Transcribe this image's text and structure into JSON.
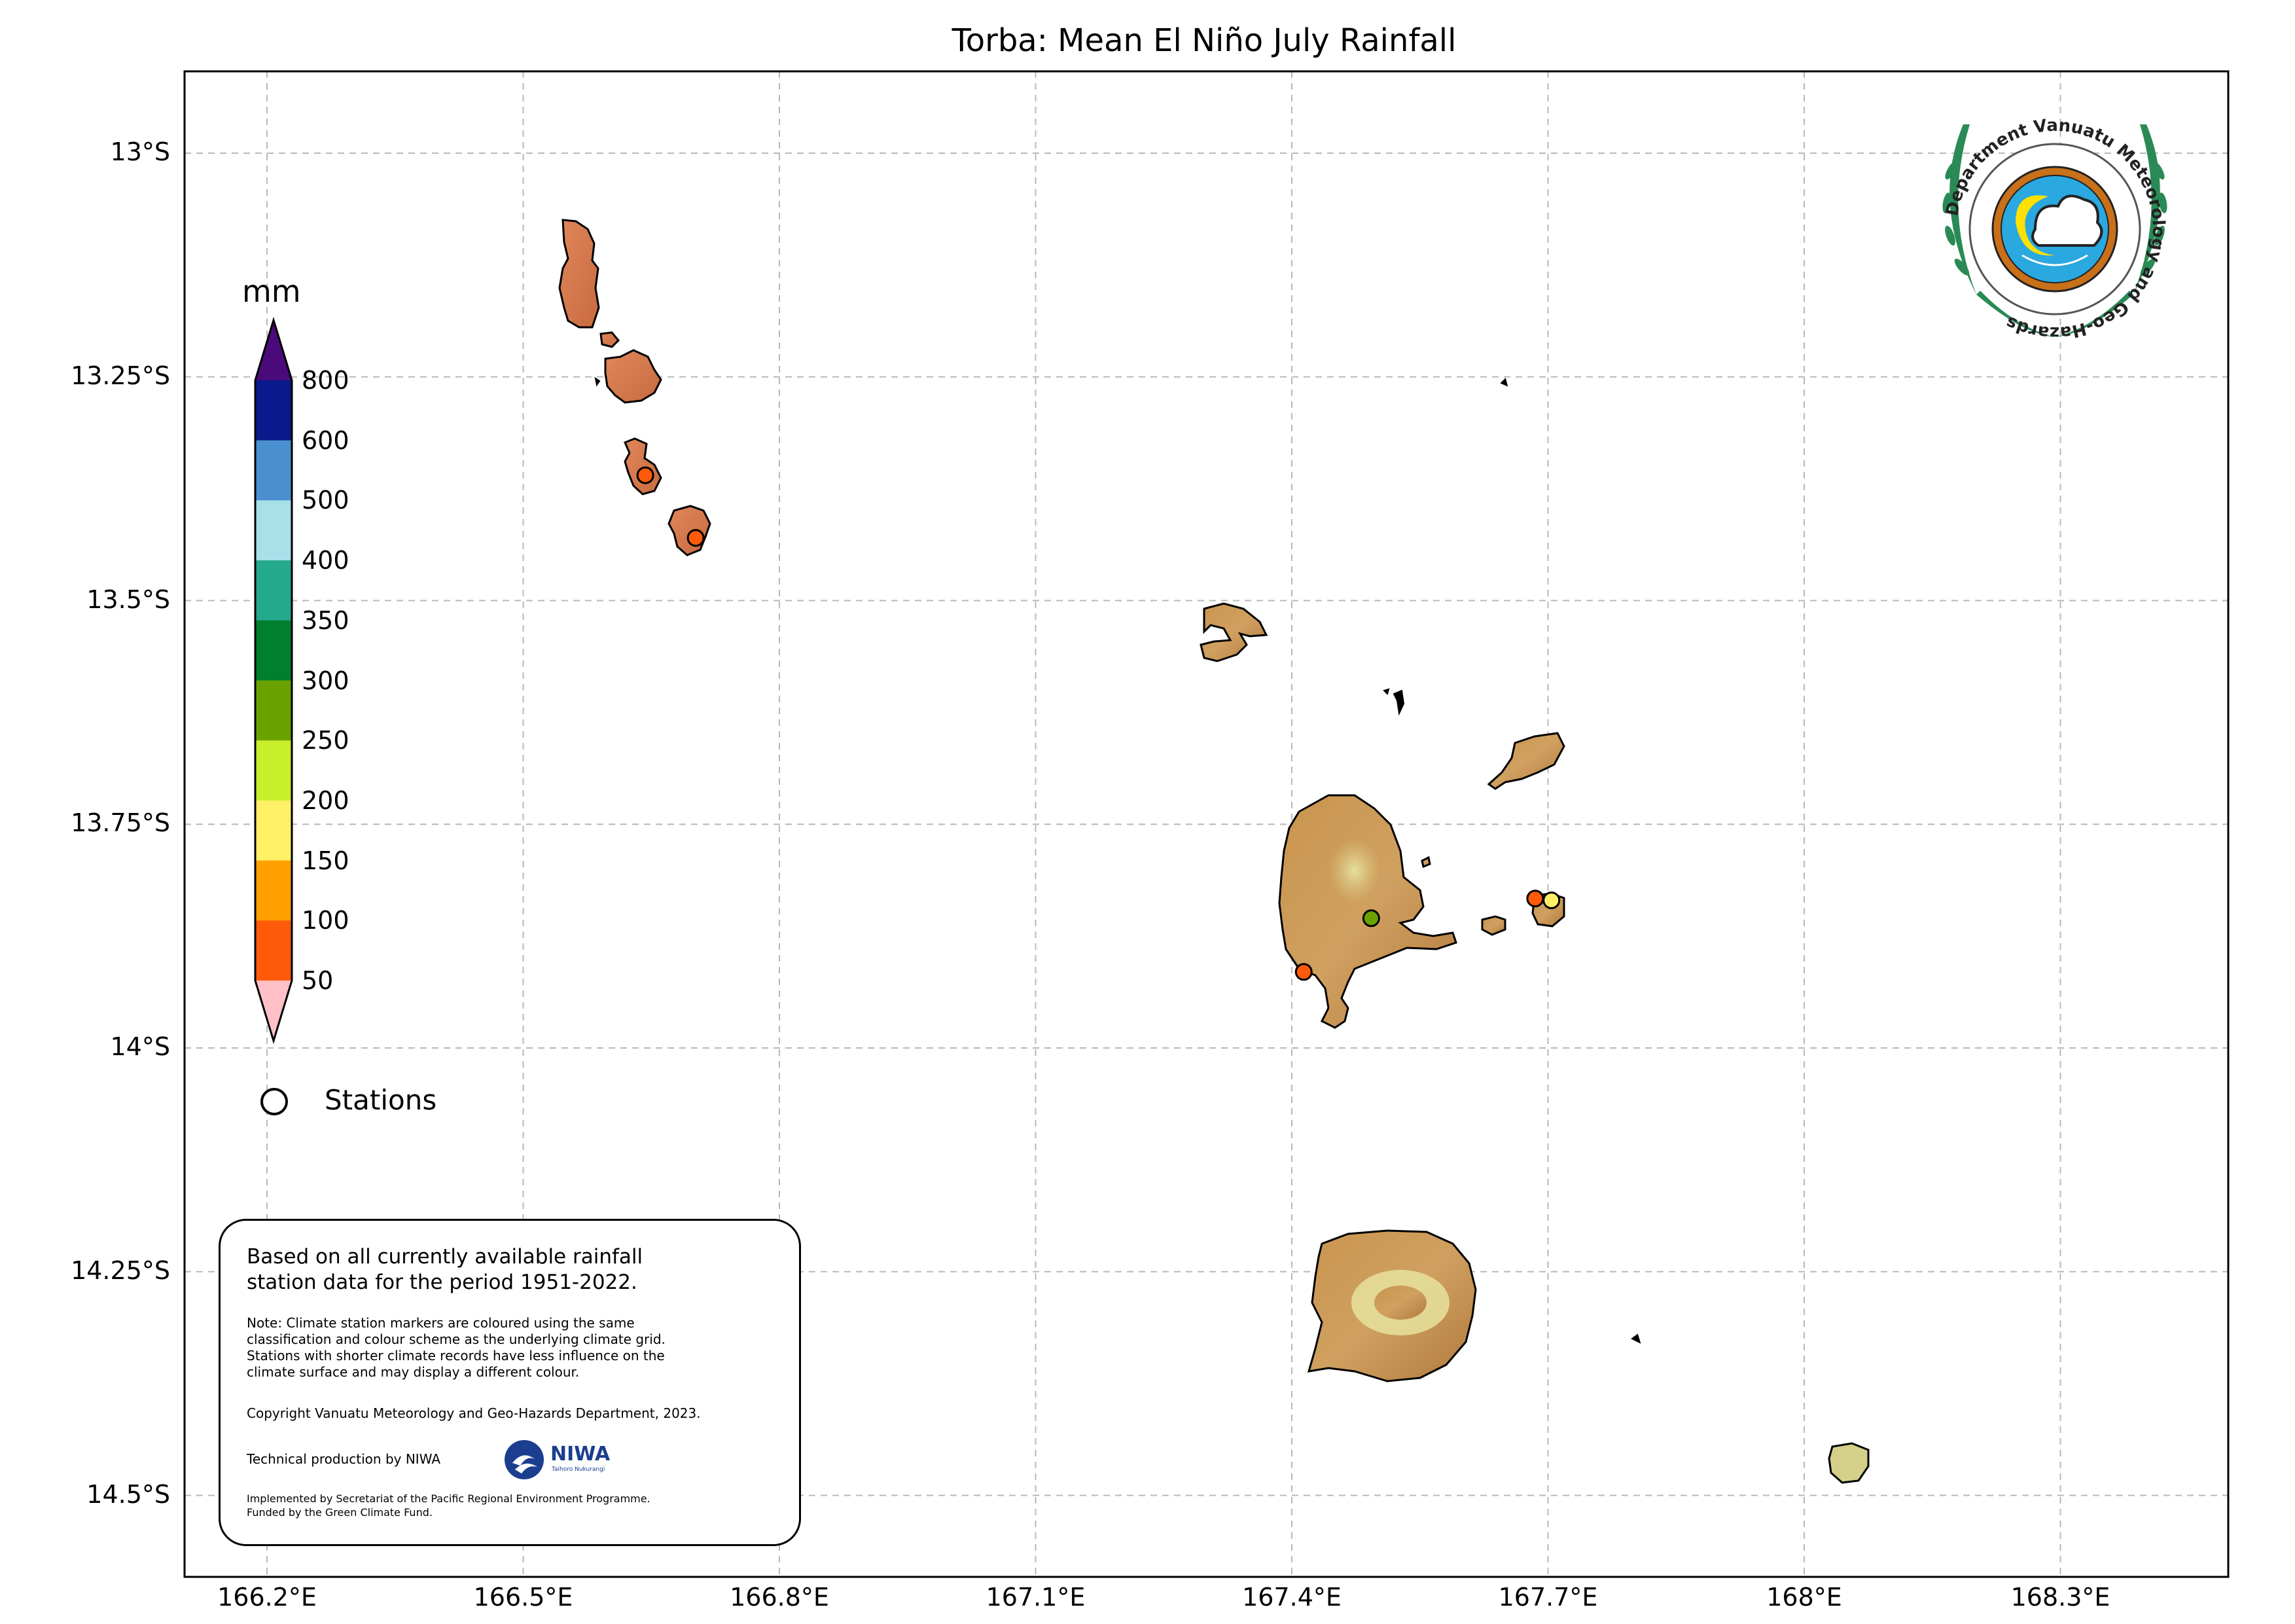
{
  "title": "Torba: Mean El Niño July Rainfall",
  "lat_ticks": [
    {
      "value": -13.0,
      "label": "13°S"
    },
    {
      "value": -13.25,
      "label": "13.25°S"
    },
    {
      "value": -13.5,
      "label": "13.5°S"
    },
    {
      "value": -13.75,
      "label": "13.75°S"
    },
    {
      "value": -14.0,
      "label": "14°S"
    },
    {
      "value": -14.25,
      "label": "14.25°S"
    },
    {
      "value": -14.5,
      "label": "14.5°S"
    }
  ],
  "lon_ticks": [
    {
      "value": 166.2,
      "label": "166.2°E"
    },
    {
      "value": 166.5,
      "label": "166.5°E"
    },
    {
      "value": 166.8,
      "label": "166.8°E"
    },
    {
      "value": 167.1,
      "label": "167.1°E"
    },
    {
      "value": 167.4,
      "label": "167.4°E"
    },
    {
      "value": 167.7,
      "label": "167.7°E"
    },
    {
      "value": 168.0,
      "label": "168°E"
    },
    {
      "value": 168.3,
      "label": "168.3°E"
    }
  ],
  "colorbar": {
    "unit": "mm",
    "labels": [
      "800",
      "600",
      "500",
      "400",
      "350",
      "300",
      "250",
      "200",
      "150",
      "100",
      "50"
    ],
    "colors": [
      "#0a1a8c",
      "#4a8fd0",
      "#a8e0ea",
      "#25a98b",
      "#007f2e",
      "#6aa300",
      "#c8ef2a",
      "#fff066",
      "#ffa000",
      "#ff5a0a"
    ],
    "over_color": "#4b0a7a",
    "under_color": "#ffc0c8"
  },
  "legend": {
    "stations_label": "Stations"
  },
  "info": {
    "main_line1": "Based on all currently available rainfall",
    "main_line2": "station data for the period 1951-2022.",
    "note_line1": "Note: Climate station markers are coloured using the same",
    "note_line2": "classification and colour scheme as the underlying climate grid.",
    "note_line3": "Stations with shorter climate records have less influence on the",
    "note_line4": "climate surface and may display a different colour.",
    "copyright": "Copyright Vanuatu Meteorology and Geo-Hazards Department, 2023.",
    "tech": "Technical production by NIWA",
    "niwa_name": "NIWA",
    "niwa_sub": "Taihoro Nukurangi",
    "impl_line1": "Implemented by Secretariat of the Pacific Regional Environment Programme.",
    "impl_line2": "Funded by the Green Climate Fund."
  },
  "logo_text": "Department Vanuatu Meteorology and Geo-Hazards",
  "stations": [
    {
      "lon": 166.643,
      "lat": -13.36,
      "color": "#ff5a0a"
    },
    {
      "lon": 166.702,
      "lat": -13.43,
      "color": "#ff5a0a"
    },
    {
      "lon": 167.493,
      "lat": -13.855,
      "color": "#6aa300"
    },
    {
      "lon": 167.414,
      "lat": -13.915,
      "color": "#ff5a0a"
    },
    {
      "lon": 167.685,
      "lat": -13.833,
      "color": "#ff5a0a"
    },
    {
      "lon": 167.704,
      "lat": -13.835,
      "color": "#fff066"
    }
  ]
}
